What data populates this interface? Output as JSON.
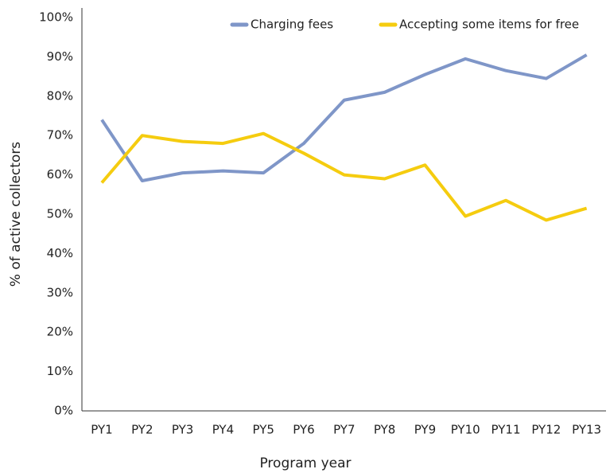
{
  "chart_data": {
    "type": "line",
    "x_label": "Program year",
    "y_label": "% of active collectors",
    "categories": [
      "PY1",
      "PY2",
      "PY3",
      "PY4",
      "PY5",
      "PY6",
      "PY7",
      "PY8",
      "PY9",
      "PY10",
      "PY11",
      "PY12",
      "PY13"
    ],
    "series": [
      {
        "name": "Charging fees",
        "color": "#7f96c8",
        "values": [
          74,
          58.5,
          60.5,
          61,
          60.5,
          68,
          79,
          81,
          85.5,
          89.5,
          86.5,
          84.5,
          90.5
        ]
      },
      {
        "name": "Accepting some items for free",
        "color": "#f5cc0f",
        "values": [
          58,
          70,
          68.5,
          68,
          70.5,
          65.5,
          60,
          59,
          62.5,
          49.5,
          53.5,
          48.5,
          51.5
        ]
      }
    ],
    "ylim": [
      0,
      100
    ],
    "yticks": [
      {
        "value": 0,
        "label": "0%"
      },
      {
        "value": 10,
        "label": "10%"
      },
      {
        "value": 20,
        "label": "20%"
      },
      {
        "value": 30,
        "label": "30%"
      },
      {
        "value": 40,
        "label": "40%"
      },
      {
        "value": 50,
        "label": "50%"
      },
      {
        "value": 60,
        "label": "60%"
      },
      {
        "value": 70,
        "label": "70%"
      },
      {
        "value": 80,
        "label": "80%"
      },
      {
        "value": 90,
        "label": "90%"
      },
      {
        "value": 100,
        "label": "100%"
      }
    ],
    "legend": "top-right",
    "grid": false
  }
}
